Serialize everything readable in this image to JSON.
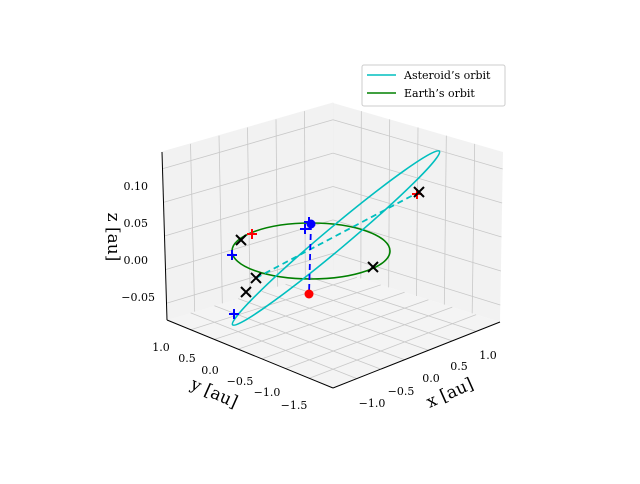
{
  "chart_data": {
    "type": "scatter3d",
    "xlabel": "x [au]",
    "ylabel": "y [au]",
    "zlabel": "z [au]",
    "x_ticks": [
      "−1.0",
      "−0.5",
      "0.0",
      "0.5",
      "1.0"
    ],
    "y_ticks": [
      "1.0",
      "0.5",
      "0.0",
      "−0.5",
      "−1.0",
      "−1.5"
    ],
    "z_ticks": [
      "0.10",
      "0.05",
      "0.00",
      "−0.05"
    ],
    "xlim": [
      -1.3,
      1.4
    ],
    "ylim": [
      -1.8,
      1.1
    ],
    "zlim": [
      -0.08,
      0.14
    ],
    "grid": true,
    "legend_position": "top-right",
    "series": [
      {
        "name": "Asteroid's orbit",
        "type": "line",
        "color": "#00bfbf"
      },
      {
        "name": "Earth's orbit",
        "type": "line",
        "color": "#008000"
      }
    ],
    "markers": {
      "black_x_count": 5,
      "red_plus_count": 2,
      "blue_plus_count": 4,
      "blue_dot_count": 1,
      "red_dot_count": 1,
      "colors": {
        "black": "#000000",
        "red": "#ff0000",
        "blue": "#0000ff"
      }
    }
  },
  "legend": {
    "items": [
      {
        "label": "Asteroid’s orbit",
        "color": "#00bfbf"
      },
      {
        "label": "Earth’s orbit",
        "color": "#008000"
      }
    ]
  }
}
